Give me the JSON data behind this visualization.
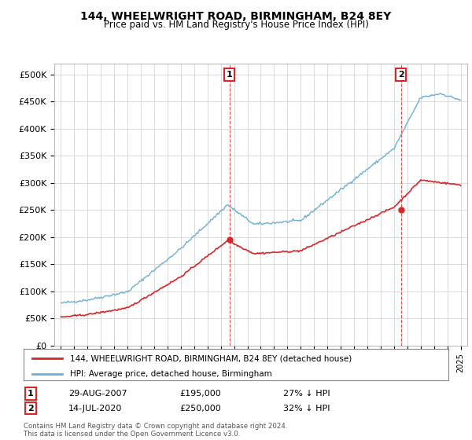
{
  "title": "144, WHEELWRIGHT ROAD, BIRMINGHAM, B24 8EY",
  "subtitle": "Price paid vs. HM Land Registry's House Price Index (HPI)",
  "hpi_label": "HPI: Average price, detached house, Birmingham",
  "property_label": "144, WHEELWRIGHT ROAD, BIRMINGHAM, B24 8EY (detached house)",
  "hpi_color": "#6baed6",
  "property_color": "#d62728",
  "marker_color": "#d62728",
  "sale1_year": 2007.65,
  "sale1_price": 195000,
  "sale1_label": "1",
  "sale1_text": "29-AUG-2007",
  "sale1_pct": "27% ↓ HPI",
  "sale2_year": 2020.53,
  "sale2_price": 250000,
  "sale2_label": "2",
  "sale2_text": "14-JUL-2020",
  "sale2_pct": "32% ↓ HPI",
  "ylim_min": 0,
  "ylim_max": 520000,
  "yticks": [
    0,
    50000,
    100000,
    150000,
    200000,
    250000,
    300000,
    350000,
    400000,
    450000,
    500000
  ],
  "footnote": "Contains HM Land Registry data © Crown copyright and database right 2024.\nThis data is licensed under the Open Government Licence v3.0.",
  "background_color": "#ffffff",
  "grid_color": "#cccccc"
}
